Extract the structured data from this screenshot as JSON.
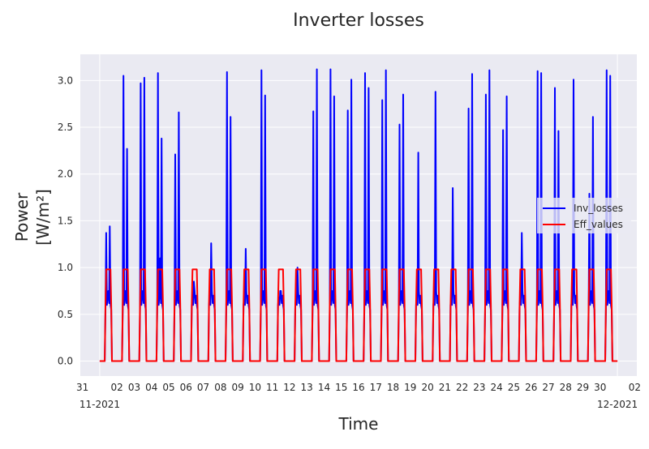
{
  "chart_data": {
    "type": "line",
    "title": "Inverter losses",
    "xlabel": "Time",
    "ylabel_line1": "Power",
    "ylabel_line2": "[W/m²]",
    "ylim": [
      -0.16,
      3.28
    ],
    "xlim": [
      "2021-10-30T21:00",
      "2021-12-02T03:00"
    ],
    "grid": true,
    "legend_position": "center-right",
    "y_ticks": [
      "0.0",
      "0.5",
      "1.0",
      "1.5",
      "2.0",
      "2.5",
      "3.0"
    ],
    "x_tick_labels": [
      "31",
      "02",
      "03",
      "04",
      "05",
      "06",
      "07",
      "08",
      "09",
      "10",
      "11",
      "12",
      "13",
      "14",
      "15",
      "16",
      "17",
      "18",
      "19",
      "20",
      "21",
      "22",
      "23",
      "24",
      "25",
      "26",
      "27",
      "28",
      "29",
      "30",
      "02"
    ],
    "x_tick_dates": [
      "2021-10-31",
      "2021-11-02",
      "2021-11-03",
      "2021-11-04",
      "2021-11-05",
      "2021-11-06",
      "2021-11-07",
      "2021-11-08",
      "2021-11-09",
      "2021-11-10",
      "2021-11-11",
      "2021-11-12",
      "2021-11-13",
      "2021-11-14",
      "2021-11-15",
      "2021-11-16",
      "2021-11-17",
      "2021-11-18",
      "2021-11-19",
      "2021-11-20",
      "2021-11-21",
      "2021-11-22",
      "2021-11-23",
      "2021-11-24",
      "2021-11-25",
      "2021-11-26",
      "2021-11-27",
      "2021-11-28",
      "2021-11-29",
      "2021-11-30",
      "2021-12-02"
    ],
    "x_month_labels": [
      "11-2021",
      "12-2021"
    ],
    "x_month_dates": [
      "2021-11-01",
      "2021-12-01"
    ],
    "series": [
      {
        "name": "Inv_losses",
        "color": "#0000ff",
        "daily_peaks": [
          [
            1.37,
            1.44
          ],
          [
            3.05,
            2.27
          ],
          [
            2.97,
            3.03
          ],
          [
            3.08,
            2.38,
            1.1
          ],
          [
            2.21,
            2.66
          ],
          [
            0.85
          ],
          [
            1.26
          ],
          [
            3.09,
            2.61
          ],
          [
            1.2
          ],
          [
            3.11,
            2.84
          ],
          [
            0.75
          ],
          [
            1.0
          ],
          [
            2.67,
            3.12
          ],
          [
            3.12,
            2.83
          ],
          [
            2.68,
            3.01
          ],
          [
            3.08,
            2.92
          ],
          [
            2.79,
            3.11
          ],
          [
            2.53,
            2.85
          ],
          [
            2.23
          ],
          [
            2.88
          ],
          [
            1.85
          ],
          [
            2.7,
            3.07
          ],
          [
            2.85,
            3.11
          ],
          [
            2.47,
            2.83
          ],
          [
            1.37
          ],
          [
            3.1,
            3.08
          ],
          [
            2.92,
            2.46
          ],
          [
            3.01
          ],
          [
            1.79,
            2.61
          ],
          [
            3.11,
            3.05
          ]
        ]
      },
      {
        "name": "Eff_values",
        "color": "#ff0000",
        "plateau": 0.98
      }
    ]
  }
}
